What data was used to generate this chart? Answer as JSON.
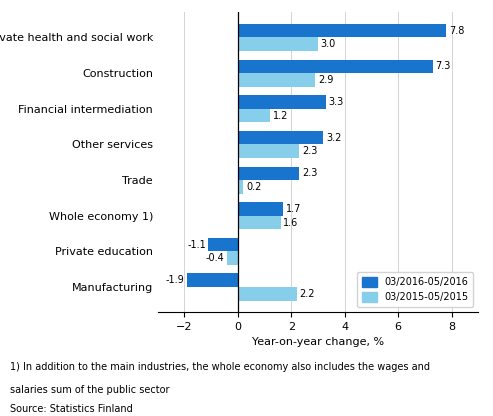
{
  "categories": [
    "Manufacturing",
    "Private education",
    "Whole economy 1)",
    "Trade",
    "Other services",
    "Financial intermediation",
    "Construction",
    "Private health and social work"
  ],
  "values_2016": [
    -1.9,
    -1.1,
    1.7,
    2.3,
    3.2,
    3.3,
    7.3,
    7.8
  ],
  "values_2015": [
    2.2,
    -0.4,
    1.6,
    0.2,
    2.3,
    1.2,
    2.9,
    3.0
  ],
  "color_2016": "#1874CD",
  "color_2015": "#87CEEB",
  "xlabel": "Year-on-year change, %",
  "legend_2016": "03/2016-05/2016",
  "legend_2015": "03/2015-05/2015",
  "xlim": [
    -3,
    9
  ],
  "xticks": [
    -2,
    0,
    2,
    4,
    6,
    8
  ],
  "footnote1": "1) In addition to the main industries, the whole economy also includes the wages and",
  "footnote2": "salaries sum of the public sector",
  "source": "Source: Statistics Finland"
}
